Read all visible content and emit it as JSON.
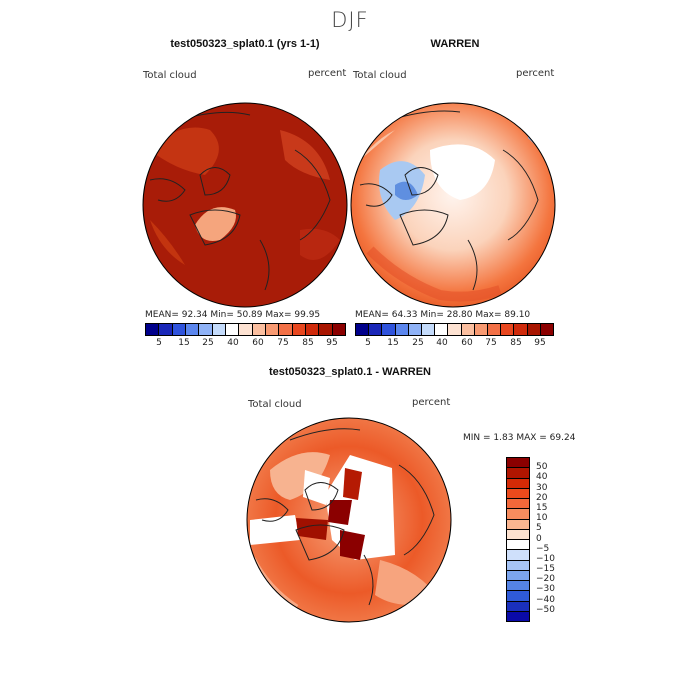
{
  "title": "DJF",
  "panels": [
    {
      "title": "test050323_splat0.1 (yrs 1-1)",
      "variable": "Total cloud",
      "units": "percent",
      "stats": "MEAN=  92.34   Min=  50.89   Max=  99.95",
      "mean": 92.34,
      "min": 50.89,
      "max": 99.95
    },
    {
      "title": "WARREN",
      "variable": "Total cloud",
      "units": "percent",
      "stats": "MEAN=  64.33   Min=  28.80   Max=  89.10",
      "mean": 64.33,
      "min": 28.8,
      "max": 89.1
    }
  ],
  "shared_colorbar": {
    "ticks": [
      "5",
      "15",
      "25",
      "40",
      "60",
      "75",
      "85",
      "95"
    ],
    "colors": [
      "#00008b",
      "#1a27b8",
      "#2f53dc",
      "#5b86ee",
      "#8fb2f6",
      "#c4dbfb",
      "#ffffff",
      "#fde2d2",
      "#fbbfa0",
      "#f89a72",
      "#f27046",
      "#e8471f",
      "#cf2a0b",
      "#a81500",
      "#8b0000"
    ]
  },
  "difference": {
    "title": "test050323_splat0.1 - WARREN",
    "variable": "Total cloud",
    "units": "percent",
    "stats": "MIN =    1.83  MAX =   69.24",
    "min": 1.83,
    "max": 69.24,
    "colorbar_ticks": [
      "50",
      "40",
      "30",
      "20",
      "15",
      "10",
      "5",
      "0",
      "−5",
      "−10",
      "−15",
      "−20",
      "−30",
      "−40",
      "−50"
    ],
    "colorbar_colors": [
      "#8b0000",
      "#b01500",
      "#d42a06",
      "#eb4a1c",
      "#f3683a",
      "#f78c5e",
      "#fbb691",
      "#fde2d0",
      "#ffffff",
      "#cfe0fb",
      "#a6c4f6",
      "#7ca5ee",
      "#5583e4",
      "#2f5ad8",
      "#1a30bd",
      "#0a0aa8"
    ]
  }
}
